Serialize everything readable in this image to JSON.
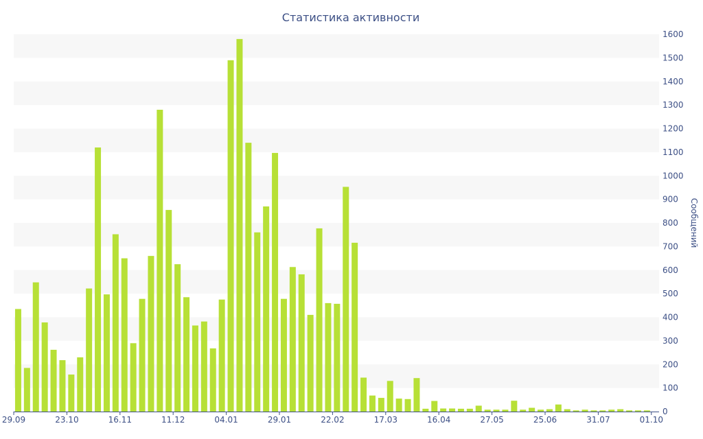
{
  "chart_data": {
    "type": "bar",
    "title": "Статистика активности",
    "ylabel": "Сообщений",
    "xlabel": "",
    "ylim": [
      0,
      1600
    ],
    "y_ticks": [
      0,
      100,
      200,
      300,
      400,
      500,
      600,
      700,
      800,
      900,
      1000,
      1100,
      1200,
      1300,
      1400,
      1500,
      1600
    ],
    "y_axis_side": "right",
    "grid": "alternating horizontal bands",
    "x_tick_labels": [
      {
        "label": "29.09",
        "index": 0
      },
      {
        "label": "23.10",
        "index": 6
      },
      {
        "label": "16.11",
        "index": 12
      },
      {
        "label": "11.12",
        "index": 18
      },
      {
        "label": "04.01",
        "index": 24
      },
      {
        "label": "29.01",
        "index": 30
      },
      {
        "label": "22.02",
        "index": 36
      },
      {
        "label": "17.03",
        "index": 42
      },
      {
        "label": "16.04",
        "index": 48
      },
      {
        "label": "27.05",
        "index": 54
      },
      {
        "label": "25.06",
        "index": 60
      },
      {
        "label": "31.07",
        "index": 66
      },
      {
        "label": "01.10",
        "index": 72
      }
    ],
    "values": [
      435,
      185,
      548,
      378,
      262,
      218,
      157,
      230,
      522,
      1120,
      497,
      752,
      650,
      290,
      478,
      660,
      1280,
      855,
      625,
      485,
      365,
      382,
      268,
      475,
      1490,
      1580,
      1140,
      760,
      870,
      1097,
      478,
      613,
      582,
      410,
      777,
      460,
      457,
      953,
      716,
      144,
      68,
      58,
      130,
      55,
      53,
      142,
      12,
      45,
      13,
      13,
      12,
      12,
      25,
      8,
      8,
      8,
      46,
      8,
      16,
      8,
      10,
      30,
      10,
      5,
      8,
      5,
      5,
      8,
      10,
      5,
      5,
      5
    ],
    "colors": {
      "bar": "#b7e036",
      "band": "#f7f7f7",
      "text": "#3c4f85",
      "axis": "#3c4f85"
    }
  }
}
